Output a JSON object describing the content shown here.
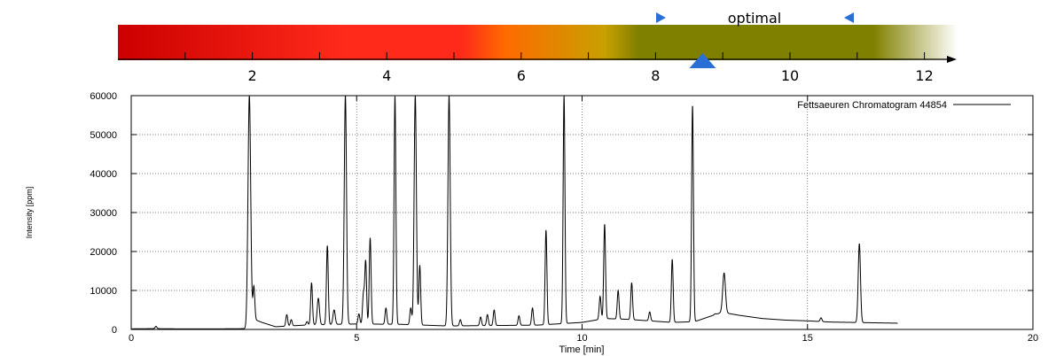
{
  "scale": {
    "optimal_label": "optimal",
    "tick_labels": [
      "2",
      "4",
      "6",
      "8",
      "10",
      "12"
    ],
    "tick_values": [
      1,
      2,
      3,
      4,
      5,
      6,
      7,
      8,
      9,
      10,
      11,
      12
    ],
    "range": [
      0,
      12
    ],
    "optimal_range": [
      8,
      11
    ],
    "current_value": 8.7,
    "colors": {
      "red": "#cc0000",
      "bright_red": "#ff2a1a",
      "orange": "#ff6a00",
      "olive": "#808000",
      "fade": "#ffffff",
      "marker_blue": "#2266cc"
    }
  },
  "chart_data": {
    "type": "line",
    "legend": "Fettsaeuren Chromatogram 44854",
    "legend_position": "top-right",
    "xlabel": "Time [min]",
    "ylabel": "Intensity [ppm]",
    "xlim": [
      0,
      20
    ],
    "ylim": [
      0,
      60000
    ],
    "x_ticks": [
      0,
      5,
      10,
      15,
      20
    ],
    "x_tick_labels": [
      "0",
      "5",
      "10",
      "15",
      "20"
    ],
    "y_ticks": [
      0,
      10000,
      20000,
      30000,
      40000,
      50000,
      60000
    ],
    "y_tick_labels": [
      "0",
      "10000",
      "20000",
      "30000",
      "40000",
      "50000",
      "60000"
    ],
    "grid": true,
    "baseline": [
      [
        0,
        150
      ],
      [
        0.5,
        200
      ],
      [
        1,
        150
      ],
      [
        2,
        150
      ],
      [
        2.6,
        200
      ],
      [
        2.75,
        2500
      ],
      [
        2.9,
        1800
      ],
      [
        3.2,
        700
      ],
      [
        4.0,
        1200
      ],
      [
        5.0,
        1400
      ],
      [
        6.0,
        1300
      ],
      [
        7.0,
        900
      ],
      [
        8.0,
        1000
      ],
      [
        9.0,
        1100
      ],
      [
        10.0,
        1800
      ],
      [
        10.5,
        2800
      ],
      [
        11.0,
        2600
      ],
      [
        11.5,
        2200
      ],
      [
        12.0,
        1800
      ],
      [
        12.5,
        2000
      ],
      [
        13.1,
        4400
      ],
      [
        13.5,
        3600
      ],
      [
        14.0,
        2800
      ],
      [
        14.5,
        2400
      ],
      [
        15.0,
        2200
      ],
      [
        15.5,
        1900
      ],
      [
        16.0,
        1800
      ],
      [
        16.5,
        1700
      ],
      [
        17.0,
        1600
      ]
    ],
    "peaks": [
      {
        "x": 0.55,
        "y": 800,
        "w": 0.02
      },
      {
        "x": 2.62,
        "y": 60000,
        "w": 0.03
      },
      {
        "x": 2.72,
        "y": 11000,
        "w": 0.02
      },
      {
        "x": 3.45,
        "y": 3800,
        "w": 0.02
      },
      {
        "x": 3.55,
        "y": 2500,
        "w": 0.02
      },
      {
        "x": 3.9,
        "y": 2000,
        "w": 0.02
      },
      {
        "x": 4.0,
        "y": 12000,
        "w": 0.02
      },
      {
        "x": 4.15,
        "y": 8000,
        "w": 0.025
      },
      {
        "x": 4.35,
        "y": 21500,
        "w": 0.02
      },
      {
        "x": 4.5,
        "y": 5000,
        "w": 0.025
      },
      {
        "x": 4.75,
        "y": 60000,
        "w": 0.025
      },
      {
        "x": 5.05,
        "y": 4000,
        "w": 0.02
      },
      {
        "x": 5.15,
        "y": 9000,
        "w": 0.02
      },
      {
        "x": 5.2,
        "y": 17500,
        "w": 0.02
      },
      {
        "x": 5.3,
        "y": 23500,
        "w": 0.02
      },
      {
        "x": 5.65,
        "y": 5500,
        "w": 0.02
      },
      {
        "x": 5.85,
        "y": 60000,
        "w": 0.02
      },
      {
        "x": 6.2,
        "y": 5500,
        "w": 0.02
      },
      {
        "x": 6.3,
        "y": 60000,
        "w": 0.025
      },
      {
        "x": 6.4,
        "y": 16500,
        "w": 0.02
      },
      {
        "x": 7.05,
        "y": 60000,
        "w": 0.025
      },
      {
        "x": 7.3,
        "y": 2500,
        "w": 0.02
      },
      {
        "x": 7.75,
        "y": 3200,
        "w": 0.02
      },
      {
        "x": 7.9,
        "y": 3800,
        "w": 0.02
      },
      {
        "x": 8.05,
        "y": 5000,
        "w": 0.02
      },
      {
        "x": 8.6,
        "y": 3500,
        "w": 0.02
      },
      {
        "x": 8.9,
        "y": 5500,
        "w": 0.02
      },
      {
        "x": 9.2,
        "y": 25500,
        "w": 0.02
      },
      {
        "x": 9.6,
        "y": 60000,
        "w": 0.02
      },
      {
        "x": 10.4,
        "y": 8500,
        "w": 0.02
      },
      {
        "x": 10.5,
        "y": 27000,
        "w": 0.02
      },
      {
        "x": 10.8,
        "y": 10000,
        "w": 0.02
      },
      {
        "x": 11.1,
        "y": 12000,
        "w": 0.02
      },
      {
        "x": 11.5,
        "y": 4500,
        "w": 0.02
      },
      {
        "x": 12.0,
        "y": 18000,
        "w": 0.02
      },
      {
        "x": 12.45,
        "y": 57500,
        "w": 0.02
      },
      {
        "x": 12.95,
        "y": 4000,
        "w": 0.02
      },
      {
        "x": 13.15,
        "y": 14500,
        "w": 0.03
      },
      {
        "x": 15.3,
        "y": 3000,
        "w": 0.02
      },
      {
        "x": 16.15,
        "y": 22000,
        "w": 0.025
      }
    ]
  }
}
